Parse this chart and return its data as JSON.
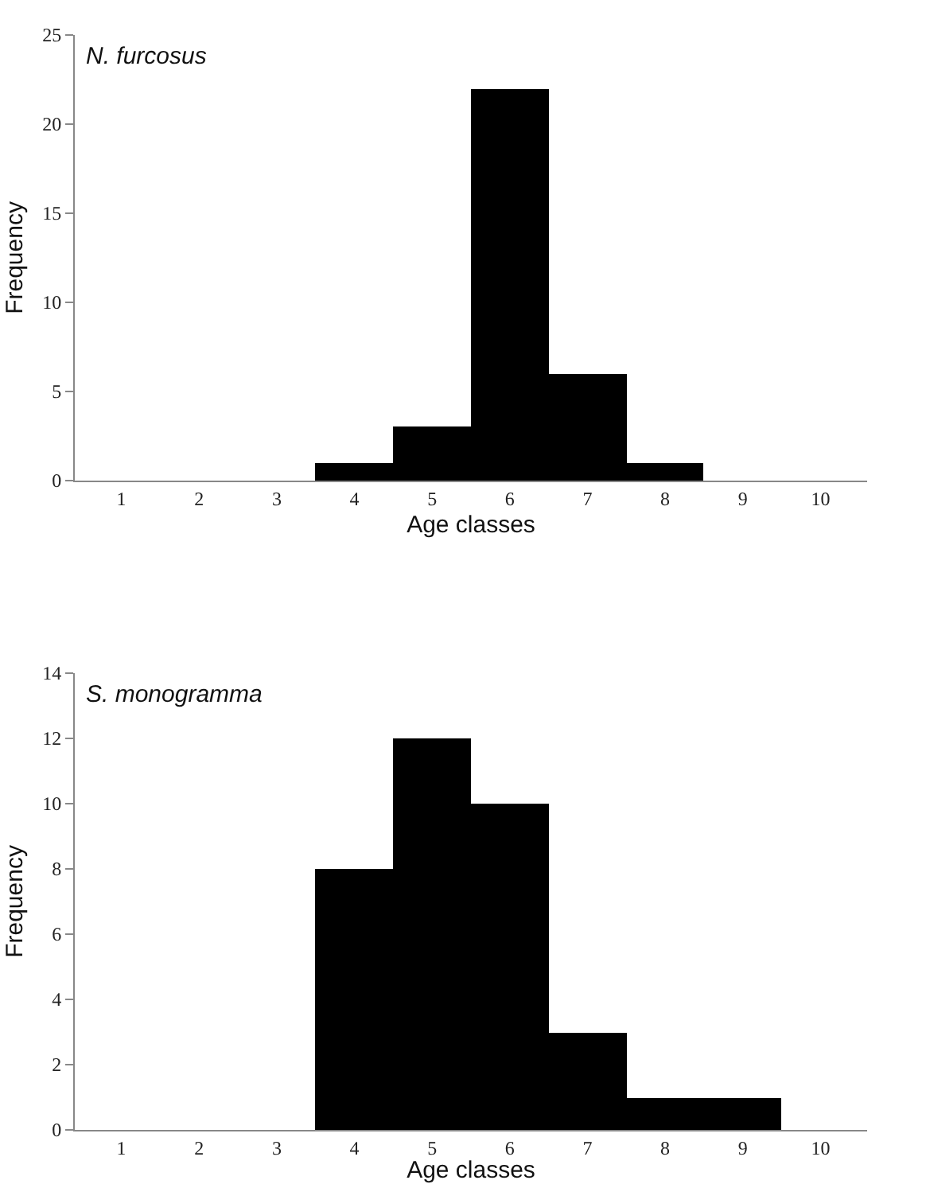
{
  "chart_data": [
    {
      "type": "bar",
      "title": "N. furcosus",
      "xlabel": "Age classes",
      "ylabel": "Frequency",
      "categories": [
        "1",
        "2",
        "3",
        "4",
        "5",
        "6",
        "7",
        "8",
        "9",
        "10"
      ],
      "values": [
        0,
        0,
        0,
        1,
        3,
        22,
        6,
        1,
        0,
        0
      ],
      "color": "#000000",
      "ylim": [
        0,
        25
      ],
      "yticks": [
        0,
        5,
        10,
        15,
        20,
        25
      ]
    },
    {
      "type": "bar",
      "title": "S. monogramma",
      "xlabel": "Age classes",
      "ylabel": "Frequency",
      "categories": [
        "1",
        "2",
        "3",
        "4",
        "5",
        "6",
        "7",
        "8",
        "9",
        "10"
      ],
      "values": [
        0,
        0,
        0,
        8,
        12,
        10,
        3,
        1,
        1,
        0
      ],
      "color": "#000000",
      "ylim": [
        0,
        14
      ],
      "yticks": [
        0,
        2,
        4,
        6,
        8,
        10,
        12,
        14
      ]
    }
  ]
}
